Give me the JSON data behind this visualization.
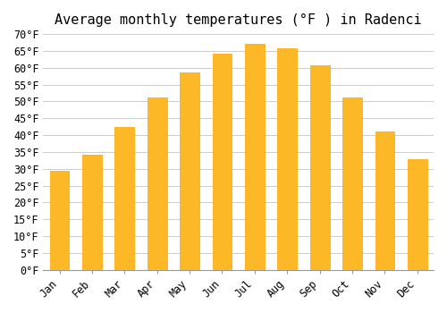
{
  "title": "Average monthly temperatures (°F ) in Radenci",
  "months": [
    "Jan",
    "Feb",
    "Mar",
    "Apr",
    "May",
    "Jun",
    "Jul",
    "Aug",
    "Sep",
    "Oct",
    "Nov",
    "Dec"
  ],
  "values": [
    29.3,
    34.3,
    42.3,
    51.1,
    58.5,
    64.2,
    67.1,
    65.8,
    60.8,
    51.3,
    41.1,
    32.9
  ],
  "bar_color": "#FDB827",
  "bar_edge_color": "#FFA500",
  "background_color": "#ffffff",
  "grid_color": "#cccccc",
  "ylim": [
    0,
    70
  ],
  "ytick_step": 5,
  "title_fontsize": 11,
  "tick_fontsize": 8.5,
  "font_family": "monospace"
}
